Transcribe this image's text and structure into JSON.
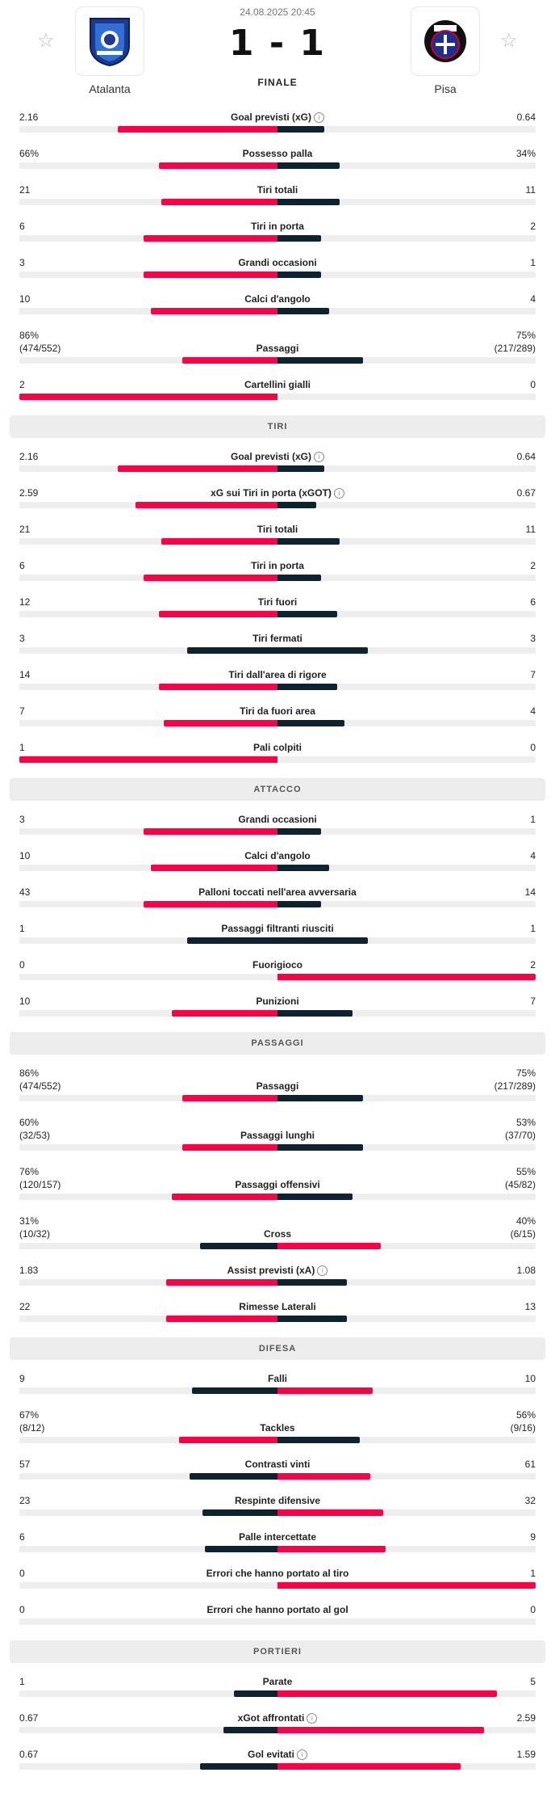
{
  "match": {
    "date": "24.08.2025 20:45",
    "score": "1 - 1",
    "status": "FINALE",
    "home": {
      "name": "Atalanta"
    },
    "away": {
      "name": "Pisa"
    }
  },
  "colors": {
    "accent": "#ff0046",
    "dark": "#0d2332",
    "track": "#eeeeee"
  },
  "sections": [
    {
      "title": "",
      "stats": [
        {
          "label": "Goal previsti (xG)",
          "info": true,
          "home": "2.16",
          "away": "0.64",
          "hf": 0.62,
          "af": 0.18,
          "win": "home"
        },
        {
          "label": "Possesso palla",
          "home": "66%",
          "away": "34%",
          "hf": 0.46,
          "af": 0.24,
          "win": "home"
        },
        {
          "label": "Tiri totali",
          "home": "21",
          "away": "11",
          "hf": 0.45,
          "af": 0.24,
          "win": "home"
        },
        {
          "label": "Tiri in porta",
          "home": "6",
          "away": "2",
          "hf": 0.52,
          "af": 0.17,
          "win": "home"
        },
        {
          "label": "Grandi occasioni",
          "home": "3",
          "away": "1",
          "hf": 0.52,
          "af": 0.17,
          "win": "home"
        },
        {
          "label": "Calci d'angolo",
          "home": "10",
          "away": "4",
          "hf": 0.49,
          "af": 0.2,
          "win": "home"
        },
        {
          "label": "Passaggi",
          "home": "86%",
          "home_sub": "(474/552)",
          "away": "75%",
          "away_sub": "(217/289)",
          "hf": 0.37,
          "af": 0.33,
          "win": "home"
        },
        {
          "label": "Cartellini gialli",
          "home": "2",
          "away": "0",
          "hf": 1.0,
          "af": 0.0,
          "win": "home"
        }
      ]
    },
    {
      "title": "TIRI",
      "stats": [
        {
          "label": "Goal previsti (xG)",
          "info": true,
          "home": "2.16",
          "away": "0.64",
          "hf": 0.62,
          "af": 0.18,
          "win": "home"
        },
        {
          "label": "xG sui Tiri in porta (xGOT)",
          "info": true,
          "home": "2.59",
          "away": "0.67",
          "hf": 0.55,
          "af": 0.15,
          "win": "home"
        },
        {
          "label": "Tiri totali",
          "home": "21",
          "away": "11",
          "hf": 0.45,
          "af": 0.24,
          "win": "home"
        },
        {
          "label": "Tiri in porta",
          "home": "6",
          "away": "2",
          "hf": 0.52,
          "af": 0.17,
          "win": "home"
        },
        {
          "label": "Tiri fuori",
          "home": "12",
          "away": "6",
          "hf": 0.46,
          "af": 0.23,
          "win": "home"
        },
        {
          "label": "Tiri fermati",
          "home": "3",
          "away": "3",
          "hf": 0.35,
          "af": 0.35,
          "win": "none"
        },
        {
          "label": "Tiri dall'area di rigore",
          "home": "14",
          "away": "7",
          "hf": 0.46,
          "af": 0.23,
          "win": "home"
        },
        {
          "label": "Tiri da fuori area",
          "home": "7",
          "away": "4",
          "hf": 0.44,
          "af": 0.26,
          "win": "home"
        },
        {
          "label": "Pali colpiti",
          "home": "1",
          "away": "0",
          "hf": 1.0,
          "af": 0.0,
          "win": "home"
        }
      ]
    },
    {
      "title": "ATTACCO",
      "stats": [
        {
          "label": "Grandi occasioni",
          "home": "3",
          "away": "1",
          "hf": 0.52,
          "af": 0.17,
          "win": "home"
        },
        {
          "label": "Calci d'angolo",
          "home": "10",
          "away": "4",
          "hf": 0.49,
          "af": 0.2,
          "win": "home"
        },
        {
          "label": "Palloni toccati nell'area avversaria",
          "home": "43",
          "away": "14",
          "hf": 0.52,
          "af": 0.17,
          "win": "home"
        },
        {
          "label": "Passaggi filtranti riusciti",
          "home": "1",
          "away": "1",
          "hf": 0.35,
          "af": 0.35,
          "win": "none"
        },
        {
          "label": "Fuorigioco",
          "home": "0",
          "away": "2",
          "hf": 0.0,
          "af": 1.0,
          "win": "away"
        },
        {
          "label": "Punizioni",
          "home": "10",
          "away": "7",
          "hf": 0.41,
          "af": 0.29,
          "win": "home"
        }
      ]
    },
    {
      "title": "PASSAGGI",
      "stats": [
        {
          "label": "Passaggi",
          "home": "86%",
          "home_sub": "(474/552)",
          "away": "75%",
          "away_sub": "(217/289)",
          "hf": 0.37,
          "af": 0.33,
          "win": "home"
        },
        {
          "label": "Passaggi lunghi",
          "home": "60%",
          "home_sub": "(32/53)",
          "away": "53%",
          "away_sub": "(37/70)",
          "hf": 0.37,
          "af": 0.33,
          "win": "home"
        },
        {
          "label": "Passaggi offensivi",
          "home": "76%",
          "home_sub": "(120/157)",
          "away": "55%",
          "away_sub": "(45/82)",
          "hf": 0.41,
          "af": 0.29,
          "win": "home"
        },
        {
          "label": "Cross",
          "home": "31%",
          "home_sub": "(10/32)",
          "away": "40%",
          "away_sub": "(6/15)",
          "hf": 0.3,
          "af": 0.4,
          "win": "away"
        },
        {
          "label": "Assist previsti (xA)",
          "info": true,
          "home": "1.83",
          "away": "1.08",
          "hf": 0.43,
          "af": 0.27,
          "win": "home"
        },
        {
          "label": "Rimesse Laterali",
          "home": "22",
          "away": "13",
          "hf": 0.43,
          "af": 0.27,
          "win": "home"
        }
      ]
    },
    {
      "title": "DIFESA",
      "stats": [
        {
          "label": "Falli",
          "home": "9",
          "away": "10",
          "hf": 0.33,
          "af": 0.37,
          "win": "away"
        },
        {
          "label": "Tackles",
          "home": "67%",
          "home_sub": "(8/12)",
          "away": "56%",
          "away_sub": "(9/16)",
          "hf": 0.38,
          "af": 0.32,
          "win": "home"
        },
        {
          "label": "Contrasti vinti",
          "home": "57",
          "away": "61",
          "hf": 0.34,
          "af": 0.36,
          "win": "away"
        },
        {
          "label": "Respinte difensive",
          "home": "23",
          "away": "32",
          "hf": 0.29,
          "af": 0.41,
          "win": "away"
        },
        {
          "label": "Palle intercettate",
          "home": "6",
          "away": "9",
          "hf": 0.28,
          "af": 0.42,
          "win": "away"
        },
        {
          "label": "Errori che hanno portato al tiro",
          "home": "0",
          "away": "1",
          "hf": 0.0,
          "af": 1.0,
          "win": "away"
        },
        {
          "label": "Errori che hanno portato al gol",
          "home": "0",
          "away": "0",
          "hf": 0.0,
          "af": 0.0,
          "win": "none"
        }
      ]
    },
    {
      "title": "PORTIERI",
      "stats": [
        {
          "label": "Parate",
          "home": "1",
          "away": "5",
          "hf": 0.17,
          "af": 0.85,
          "win": "away"
        },
        {
          "label": "xGot affrontati",
          "info": true,
          "home": "0.67",
          "away": "2.59",
          "hf": 0.21,
          "af": 0.8,
          "win": "away"
        },
        {
          "label": "Gol evitati",
          "info": true,
          "home": "0.67",
          "away": "1.59",
          "hf": 0.3,
          "af": 0.71,
          "win": "away"
        }
      ]
    }
  ]
}
